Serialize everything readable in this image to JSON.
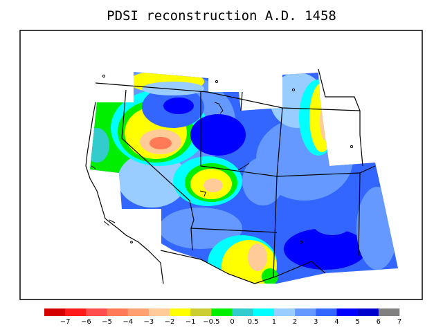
{
  "title": "PDSI reconstruction A.D. 1458",
  "colorbar": {
    "colors": [
      "#d40000",
      "#ff1a1a",
      "#ff4d4d",
      "#ff7a55",
      "#ffa070",
      "#ffcc99",
      "#ffff00",
      "#cccc33",
      "#00ee00",
      "#33cccc",
      "#00ffff",
      "#99ccff",
      "#6699ff",
      "#3366ff",
      "#0000ff",
      "#0000cc",
      "#808080"
    ],
    "labels": [
      "−7",
      "−6",
      "−5",
      "−4",
      "−3",
      "−2",
      "−1",
      "−0.5",
      "0",
      "0.5",
      "1",
      "2",
      "3",
      "4",
      "5",
      "6",
      "7"
    ]
  }
}
